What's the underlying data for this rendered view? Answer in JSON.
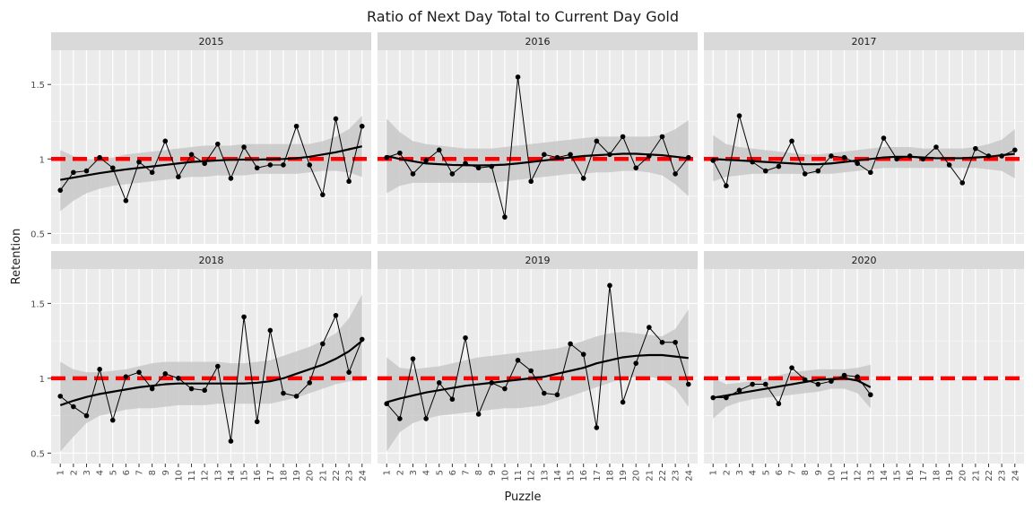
{
  "chart_data": {
    "type": "line",
    "title": "Ratio of Next Day Total to Current Day Gold",
    "xlabel": "Puzzle",
    "ylabel": "Retention",
    "x_ticks": [
      "1",
      "2",
      "3",
      "4",
      "5",
      "6",
      "7",
      "8",
      "9",
      "10",
      "11",
      "12",
      "13",
      "14",
      "15",
      "16",
      "17",
      "18",
      "19",
      "20",
      "21",
      "22",
      "23",
      "24"
    ],
    "y_ticks": [
      "0.5",
      "1",
      "1.5"
    ],
    "y_tick_values": [
      0.5,
      1,
      1.5
    ],
    "xlim": [
      0.3,
      24.7
    ],
    "ylim": [
      0.43,
      1.73
    ],
    "reference_line": {
      "y": 1,
      "color": "#ff0000",
      "style": "dashed"
    },
    "smoothing": "loess with confidence band",
    "grid": true,
    "colors": {
      "panel_bg": "#ebebeb",
      "strip_bg": "#d9d9d9",
      "grid": "#ffffff",
      "band": "#c8c8c8",
      "points": "#000000",
      "reference": "#ff0000"
    },
    "facets": [
      {
        "label": "2015",
        "values": [
          0.79,
          0.91,
          0.92,
          1.01,
          0.94,
          0.72,
          0.98,
          0.91,
          1.12,
          0.88,
          1.03,
          0.97,
          1.1,
          0.87,
          1.08,
          0.94,
          0.96,
          0.96,
          1.22,
          0.96,
          0.76,
          1.27,
          0.85,
          1.22
        ],
        "smooth": [
          0.86,
          0.875,
          0.89,
          0.905,
          0.918,
          0.93,
          0.94,
          0.95,
          0.96,
          0.97,
          0.98,
          0.985,
          0.99,
          0.995,
          0.996,
          0.996,
          0.998,
          1.0,
          1.005,
          1.015,
          1.03,
          1.045,
          1.065,
          1.085
        ],
        "band_upper": [
          1.06,
          1.02,
          1.0,
          1.0,
          1.01,
          1.03,
          1.04,
          1.05,
          1.06,
          1.07,
          1.08,
          1.09,
          1.09,
          1.09,
          1.1,
          1.1,
          1.1,
          1.1,
          1.1,
          1.1,
          1.12,
          1.15,
          1.2,
          1.29
        ],
        "band_lower": [
          0.65,
          0.72,
          0.77,
          0.8,
          0.82,
          0.83,
          0.84,
          0.85,
          0.86,
          0.87,
          0.88,
          0.88,
          0.89,
          0.89,
          0.89,
          0.9,
          0.9,
          0.9,
          0.9,
          0.91,
          0.92,
          0.92,
          0.91,
          0.88
        ]
      },
      {
        "label": "2016",
        "values": [
          1.01,
          1.04,
          0.9,
          0.99,
          1.06,
          0.9,
          0.97,
          0.94,
          0.95,
          0.61,
          1.55,
          0.85,
          1.03,
          1.01,
          1.03,
          0.87,
          1.12,
          1.03,
          1.15,
          0.94,
          1.02,
          1.15,
          0.9,
          1.01
        ],
        "smooth": [
          1.02,
          1.0,
          0.985,
          0.97,
          0.965,
          0.96,
          0.958,
          0.957,
          0.958,
          0.962,
          0.97,
          0.98,
          0.99,
          1.0,
          1.01,
          1.02,
          1.025,
          1.03,
          1.035,
          1.035,
          1.03,
          1.025,
          1.015,
          1.005
        ],
        "band_upper": [
          1.27,
          1.18,
          1.12,
          1.1,
          1.09,
          1.08,
          1.07,
          1.07,
          1.07,
          1.08,
          1.09,
          1.1,
          1.11,
          1.12,
          1.13,
          1.14,
          1.15,
          1.15,
          1.15,
          1.15,
          1.15,
          1.16,
          1.2,
          1.26
        ],
        "band_lower": [
          0.77,
          0.82,
          0.84,
          0.84,
          0.84,
          0.84,
          0.84,
          0.84,
          0.84,
          0.85,
          0.86,
          0.87,
          0.88,
          0.89,
          0.9,
          0.9,
          0.91,
          0.91,
          0.92,
          0.92,
          0.91,
          0.89,
          0.83,
          0.75
        ]
      },
      {
        "label": "2017",
        "values": [
          0.99,
          0.82,
          1.29,
          0.98,
          0.92,
          0.95,
          1.12,
          0.9,
          0.92,
          1.02,
          1.01,
          0.97,
          0.91,
          1.14,
          1.0,
          1.02,
          1.0,
          1.08,
          0.96,
          0.84,
          1.07,
          1.02,
          1.02,
          1.06
        ],
        "smooth": [
          1.0,
          0.995,
          0.99,
          0.985,
          0.98,
          0.975,
          0.97,
          0.965,
          0.965,
          0.97,
          0.98,
          0.99,
          1.0,
          1.01,
          1.015,
          1.015,
          1.01,
          1.005,
          1.005,
          1.005,
          1.01,
          1.015,
          1.025,
          1.035
        ],
        "band_upper": [
          1.16,
          1.1,
          1.08,
          1.07,
          1.06,
          1.05,
          1.04,
          1.03,
          1.03,
          1.04,
          1.05,
          1.06,
          1.07,
          1.08,
          1.08,
          1.08,
          1.07,
          1.07,
          1.07,
          1.07,
          1.08,
          1.1,
          1.13,
          1.2
        ],
        "band_lower": [
          0.85,
          0.88,
          0.89,
          0.9,
          0.9,
          0.9,
          0.9,
          0.9,
          0.9,
          0.9,
          0.91,
          0.92,
          0.93,
          0.94,
          0.94,
          0.94,
          0.94,
          0.94,
          0.94,
          0.94,
          0.94,
          0.93,
          0.92,
          0.87
        ]
      },
      {
        "label": "2018",
        "values": [
          0.88,
          0.81,
          0.75,
          1.06,
          0.72,
          1.01,
          1.04,
          0.93,
          1.03,
          1.0,
          0.93,
          0.92,
          1.08,
          0.58,
          1.41,
          0.71,
          1.32,
          0.9,
          0.88,
          0.97,
          1.23,
          1.42,
          1.04,
          1.26
        ],
        "smooth": [
          0.82,
          0.85,
          0.875,
          0.895,
          0.91,
          0.925,
          0.94,
          0.95,
          0.96,
          0.965,
          0.965,
          0.965,
          0.965,
          0.965,
          0.965,
          0.97,
          0.98,
          1.0,
          1.03,
          1.06,
          1.09,
          1.13,
          1.18,
          1.25
        ],
        "band_upper": [
          1.11,
          1.06,
          1.04,
          1.04,
          1.05,
          1.06,
          1.08,
          1.1,
          1.11,
          1.11,
          1.11,
          1.11,
          1.11,
          1.1,
          1.1,
          1.11,
          1.12,
          1.15,
          1.18,
          1.21,
          1.25,
          1.3,
          1.4,
          1.56
        ],
        "band_lower": [
          0.51,
          0.61,
          0.7,
          0.75,
          0.77,
          0.79,
          0.8,
          0.8,
          0.81,
          0.82,
          0.82,
          0.82,
          0.83,
          0.83,
          0.83,
          0.83,
          0.83,
          0.85,
          0.87,
          0.9,
          0.93,
          0.96,
          0.98,
          0.98
        ]
      },
      {
        "label": "2019",
        "values": [
          0.83,
          0.73,
          1.13,
          0.73,
          0.97,
          0.86,
          1.27,
          0.76,
          0.97,
          0.93,
          1.12,
          1.05,
          0.9,
          0.89,
          1.23,
          1.16,
          0.67,
          1.62,
          0.84,
          1.1,
          1.34,
          1.24,
          1.24,
          0.96
        ],
        "smooth": [
          0.84,
          0.865,
          0.885,
          0.905,
          0.92,
          0.935,
          0.95,
          0.96,
          0.97,
          0.98,
          0.99,
          1.0,
          1.01,
          1.03,
          1.05,
          1.07,
          1.1,
          1.12,
          1.14,
          1.15,
          1.155,
          1.155,
          1.145,
          1.135
        ],
        "band_upper": [
          1.14,
          1.07,
          1.06,
          1.07,
          1.08,
          1.1,
          1.12,
          1.14,
          1.15,
          1.16,
          1.17,
          1.18,
          1.19,
          1.2,
          1.22,
          1.25,
          1.28,
          1.3,
          1.31,
          1.3,
          1.29,
          1.28,
          1.33,
          1.46
        ],
        "band_lower": [
          0.51,
          0.64,
          0.7,
          0.73,
          0.75,
          0.76,
          0.77,
          0.78,
          0.79,
          0.8,
          0.8,
          0.81,
          0.82,
          0.85,
          0.88,
          0.91,
          0.94,
          0.97,
          1.0,
          1.01,
          1.01,
          0.99,
          0.93,
          0.81
        ]
      },
      {
        "label": "2020",
        "x": [
          1,
          2,
          3,
          4,
          5,
          6,
          7,
          8,
          9,
          10,
          11,
          12,
          13
        ],
        "values": [
          0.87,
          0.87,
          0.92,
          0.96,
          0.96,
          0.83,
          1.07,
          0.99,
          0.96,
          0.98,
          1.02,
          1.01,
          0.89
        ],
        "smooth": [
          0.87,
          0.885,
          0.9,
          0.915,
          0.93,
          0.945,
          0.96,
          0.975,
          0.99,
          0.995,
          1.0,
          0.985,
          0.94
        ],
        "band_upper": [
          1.0,
          0.96,
          0.97,
          0.98,
          1.0,
          1.02,
          1.04,
          1.05,
          1.06,
          1.06,
          1.06,
          1.07,
          1.09
        ],
        "band_lower": [
          0.73,
          0.81,
          0.84,
          0.86,
          0.87,
          0.88,
          0.89,
          0.9,
          0.91,
          0.93,
          0.93,
          0.9,
          0.8
        ]
      }
    ]
  }
}
